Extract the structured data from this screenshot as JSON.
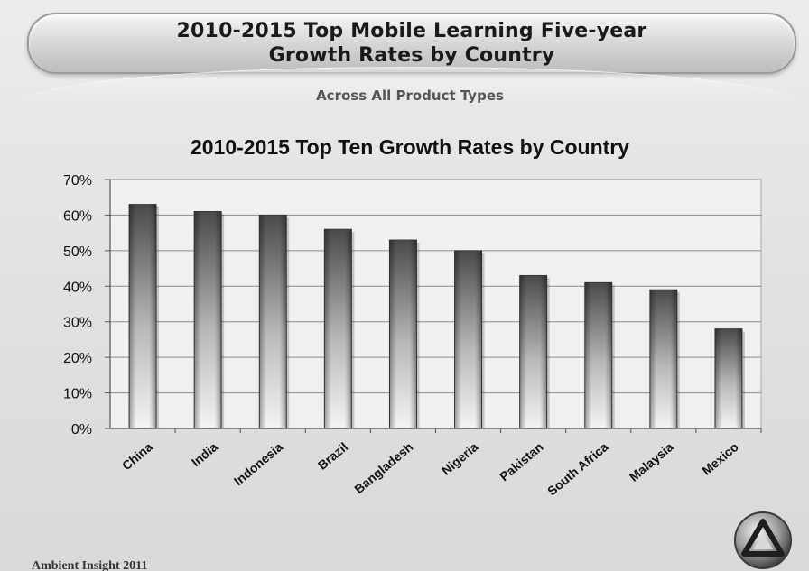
{
  "slide": {
    "title_line1": "2010-2015 Top Mobile Learning Five-year",
    "title_line2": "Growth Rates by Country",
    "subtitle": "Across All Product Types",
    "footer": "Ambient Insight 2011",
    "logo_icon": "ambient-insight-triangle-logo-icon"
  },
  "chart_data": {
    "type": "bar",
    "title": "2010-2015 Top Ten Growth Rates by Country",
    "xlabel": "",
    "ylabel": "",
    "categories": [
      "China",
      "India",
      "Indonesia",
      "Brazil",
      "Bangladesh",
      "Nigeria",
      "Pakistan",
      "South Africa",
      "Malaysia",
      "Mexico"
    ],
    "values": [
      63,
      61,
      60,
      56,
      53,
      50,
      43,
      41,
      39,
      28
    ],
    "ylim": [
      0,
      70
    ],
    "yticks": [
      0,
      10,
      20,
      30,
      40,
      50,
      60,
      70
    ],
    "ytick_labels": [
      "0%",
      "10%",
      "20%",
      "30%",
      "40%",
      "50%",
      "60%",
      "70%"
    ],
    "grid": true,
    "legend": "none",
    "colors": {
      "bar_dark": "#4a4a4a",
      "bar_light": "#f4f4f4",
      "grid": "#8c8c8c",
      "axis": "#555555"
    }
  }
}
